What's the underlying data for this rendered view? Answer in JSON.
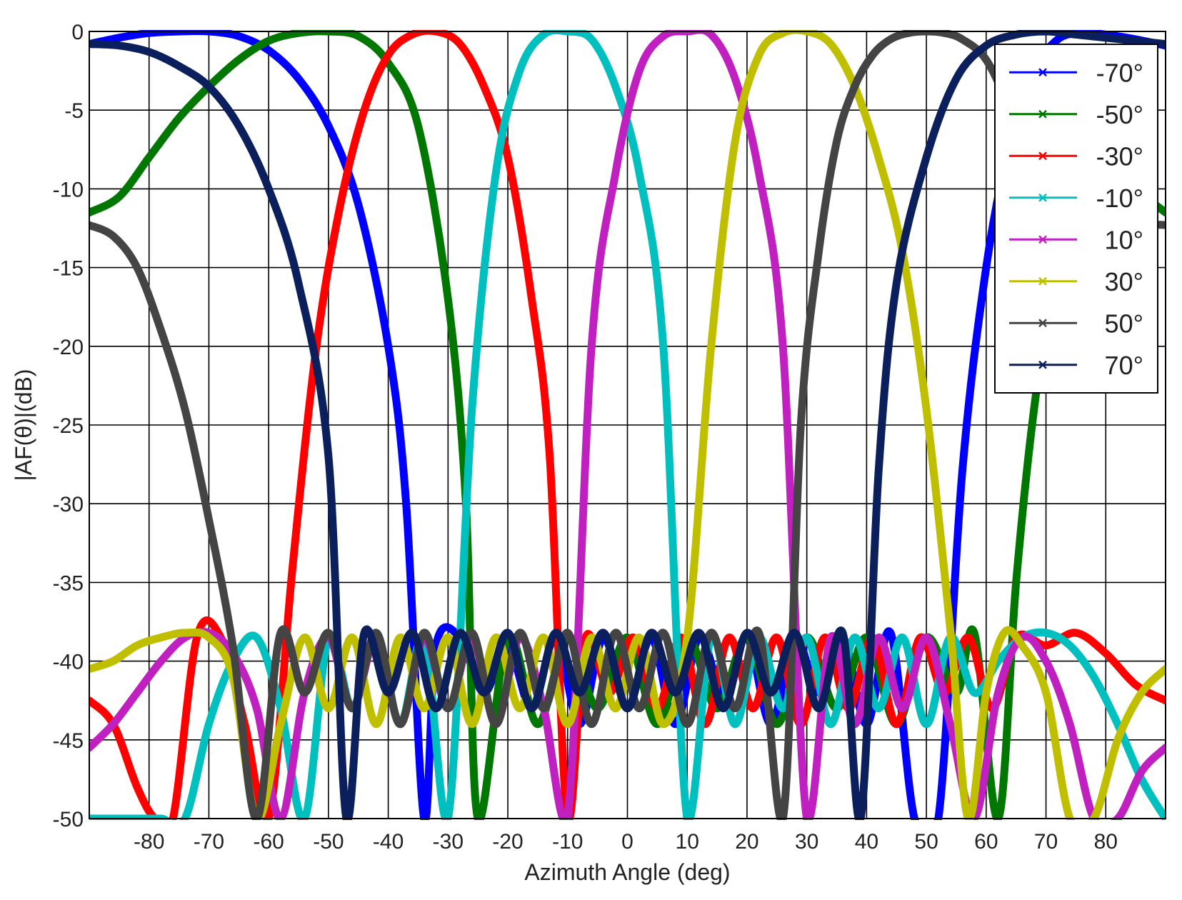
{
  "chart_data": {
    "type": "line",
    "title": "",
    "xlabel": "Azimuth Angle (deg)",
    "ylabel": "|AF(θ)|(dB)",
    "xlim": [
      -90,
      90
    ],
    "ylim": [
      -50,
      0
    ],
    "xticks": [
      -80,
      -70,
      -60,
      -50,
      -40,
      -30,
      -20,
      -10,
      0,
      10,
      20,
      30,
      40,
      50,
      60,
      70,
      80
    ],
    "yticks": [
      0,
      -5,
      -10,
      -15,
      -20,
      -25,
      -30,
      -35,
      -40,
      -45,
      -50
    ],
    "grid": true,
    "legend_position": "top-right",
    "marker": "x",
    "series": [
      {
        "name": "-70°",
        "color": "#0000ff",
        "x": [
          -90,
          -85,
          -80,
          -75,
          -70,
          -65,
          -60,
          -55,
          -50,
          -45,
          -40,
          -37,
          -34,
          -32,
          -28,
          -24,
          -20,
          -16,
          -12,
          -8,
          -4,
          0,
          4,
          8,
          12,
          16,
          20,
          24,
          28,
          32,
          36,
          40,
          44,
          48,
          52,
          56,
          60,
          64,
          68,
          72,
          76,
          80,
          85,
          90
        ],
        "y": [
          -0.8,
          -0.4,
          -0.1,
          0,
          0,
          -0.3,
          -1.2,
          -3,
          -6,
          -11,
          -20,
          -30,
          -50,
          -39,
          -38.5,
          -42,
          -39,
          -43,
          -38.5,
          -44,
          -38.5,
          -43,
          -38.5,
          -44,
          -38.5,
          -42,
          -38.5,
          -44,
          -38.5,
          -42,
          -38.5,
          -44,
          -38.2,
          -50,
          -50,
          -28,
          -15,
          -7,
          -2.5,
          -0.5,
          -0.1,
          -0.2,
          -0.5,
          -0.9
        ]
      },
      {
        "name": "-50°",
        "color": "#007700",
        "x": [
          -90,
          -85,
          -80,
          -75,
          -70,
          -65,
          -60,
          -55,
          -50,
          -45,
          -40,
          -35,
          -30,
          -27,
          -25,
          -20,
          -15,
          -10,
          -5,
          0,
          5,
          10,
          15,
          20,
          25,
          30,
          35,
          40,
          45,
          50,
          55,
          58,
          62,
          65,
          68,
          72,
          76,
          80,
          85,
          90
        ],
        "y": [
          -11.5,
          -10.5,
          -8,
          -5.5,
          -3.5,
          -1.8,
          -0.6,
          -0.1,
          0,
          -0.3,
          -2,
          -6,
          -17,
          -30,
          -50,
          -38.5,
          -44,
          -38.5,
          -43,
          -38.5,
          -44,
          -38.5,
          -43,
          -38.5,
          -44,
          -38.5,
          -43,
          -38.5,
          -44,
          -38.5,
          -42,
          -38.2,
          -50,
          -35,
          -24,
          -14,
          -9,
          -8,
          -10,
          -11.5
        ]
      },
      {
        "name": "-30°",
        "color": "#ff0000",
        "x": [
          -90,
          -86,
          -82,
          -79,
          -76,
          -72,
          -68,
          -64,
          -60,
          -56,
          -52,
          -48,
          -44,
          -40,
          -36,
          -32,
          -28,
          -24,
          -20,
          -16,
          -13,
          -10,
          -7,
          -3,
          1,
          5,
          9,
          13,
          17,
          21,
          25,
          29,
          33,
          37,
          41,
          45,
          49,
          53,
          57,
          61,
          65,
          70,
          75,
          80,
          85,
          90
        ],
        "y": [
          -42.5,
          -44,
          -48,
          -50,
          -50,
          -38.5,
          -38.5,
          -44,
          -50,
          -34,
          -20,
          -11,
          -5,
          -1.5,
          -0.2,
          0,
          -0.8,
          -3.5,
          -8,
          -17,
          -27,
          -50,
          -38.5,
          -42,
          -38.5,
          -43,
          -38.5,
          -44,
          -38.5,
          -43,
          -38.5,
          -44,
          -38.5,
          -43,
          -38.5,
          -44,
          -38.5,
          -42,
          -38.5,
          -43,
          -38.5,
          -39,
          -38.2,
          -39.5,
          -41.5,
          -42.5
        ]
      },
      {
        "name": "-10°",
        "color": "#00bfbf",
        "x": [
          -90,
          -86,
          -82,
          -78,
          -74,
          -70,
          -66,
          -62,
          -58,
          -54,
          -50,
          -46,
          -42,
          -38,
          -34,
          -30,
          -26,
          -22,
          -18,
          -14,
          -10,
          -6,
          -2,
          2,
          6,
          10,
          14,
          18,
          22,
          26,
          30,
          34,
          38,
          42,
          46,
          50,
          54,
          58,
          62,
          66,
          70,
          74,
          78,
          82,
          86,
          90
        ],
        "y": [
          -50,
          -50,
          -50,
          -50,
          -50,
          -44,
          -40,
          -38.5,
          -43,
          -50,
          -38.5,
          -43,
          -38.5,
          -44,
          -38.5,
          -50,
          -24,
          -9,
          -2.5,
          -0.2,
          0,
          -0.5,
          -3.5,
          -9,
          -20,
          -50,
          -38.5,
          -44,
          -38.5,
          -43,
          -38.5,
          -44,
          -38.5,
          -43,
          -38.5,
          -44,
          -38.5,
          -42,
          -40,
          -38.5,
          -38.2,
          -39,
          -41,
          -44,
          -47.5,
          -50
        ]
      },
      {
        "name": "10°",
        "color": "#c020c0",
        "x": [
          -90,
          -86,
          -82,
          -78,
          -74,
          -70,
          -66,
          -62,
          -58,
          -54,
          -50,
          -46,
          -42,
          -38,
          -34,
          -30,
          -26,
          -22,
          -18,
          -14,
          -10,
          -6,
          -2,
          2,
          6,
          10,
          14,
          18,
          22,
          26,
          30,
          34,
          38,
          42,
          46,
          50,
          54,
          58,
          62,
          66,
          70,
          74,
          78,
          82,
          86,
          90
        ],
        "y": [
          -45.5,
          -44,
          -42,
          -40,
          -38.5,
          -38.2,
          -39.5,
          -43,
          -50,
          -42,
          -38.5,
          -43,
          -38.5,
          -44,
          -38.5,
          -43,
          -38.5,
          -44,
          -38.5,
          -43,
          -50,
          -20,
          -9,
          -2.5,
          -0.3,
          0,
          -0.2,
          -3,
          -9,
          -20,
          -50,
          -38.5,
          -44,
          -38.5,
          -43,
          -38.5,
          -44,
          -50,
          -42,
          -38.5,
          -40,
          -44,
          -50,
          -50,
          -47,
          -45.5
        ]
      },
      {
        "name": "30°",
        "color": "#bfbf00",
        "x": [
          -90,
          -86,
          -82,
          -78,
          -74,
          -70,
          -66,
          -62,
          -58,
          -54,
          -50,
          -46,
          -42,
          -38,
          -34,
          -30,
          -26,
          -22,
          -18,
          -14,
          -10,
          -6,
          -2,
          2,
          6,
          10,
          14,
          18,
          22,
          26,
          30,
          34,
          38,
          42,
          46,
          50,
          54,
          57,
          60,
          63,
          66,
          70,
          74,
          78,
          82,
          86,
          90
        ],
        "y": [
          -40.5,
          -40,
          -39,
          -38.5,
          -38.2,
          -38.5,
          -41,
          -50,
          -44,
          -38.5,
          -43,
          -38.5,
          -44,
          -38.5,
          -43,
          -38.5,
          -44,
          -38.5,
          -43,
          -38.5,
          -44,
          -38.5,
          -43,
          -38.5,
          -44,
          -38.5,
          -20,
          -7,
          -1.5,
          -0.1,
          0,
          -0.8,
          -3.5,
          -8,
          -14,
          -24,
          -38,
          -50,
          -42,
          -38.2,
          -39,
          -42,
          -50,
          -50,
          -45,
          -42,
          -40.5
        ]
      },
      {
        "name": "50°",
        "color": "#444444",
        "x": [
          -90,
          -86,
          -82,
          -78,
          -74,
          -70,
          -66,
          -62,
          -58,
          -54,
          -50,
          -46,
          -42,
          -38,
          -34,
          -30,
          -26,
          -22,
          -18,
          -14,
          -10,
          -6,
          -2,
          2,
          6,
          10,
          14,
          18,
          22,
          26,
          29,
          32,
          35,
          38,
          41,
          44,
          47,
          50,
          53,
          56,
          60,
          64,
          68,
          72,
          76,
          80,
          85,
          90
        ],
        "y": [
          -12.3,
          -13,
          -15,
          -19,
          -24,
          -31,
          -39,
          -50,
          -38.2,
          -42,
          -38.2,
          -43,
          -38.2,
          -44,
          -38.2,
          -43,
          -38.2,
          -44,
          -38.2,
          -43,
          -38.2,
          -44,
          -38.2,
          -43,
          -38.2,
          -44,
          -38.2,
          -43,
          -38.2,
          -50,
          -25,
          -14,
          -7,
          -3.5,
          -1.5,
          -0.5,
          -0.1,
          0,
          -0.1,
          -0.5,
          -1.8,
          -5,
          -9,
          -11.5,
          -12,
          -12,
          -12.2,
          -12.3
        ]
      },
      {
        "name": "70°",
        "color": "#0a1f5c",
        "x": [
          -90,
          -85,
          -80,
          -75,
          -70,
          -65,
          -60,
          -55,
          -50,
          -47,
          -44,
          -40,
          -36,
          -32,
          -28,
          -24,
          -20,
          -16,
          -12,
          -8,
          -4,
          0,
          4,
          8,
          12,
          16,
          20,
          24,
          28,
          32,
          36,
          39,
          42,
          45,
          50,
          55,
          60,
          65,
          70,
          75,
          80,
          85,
          90
        ],
        "y": [
          -0.8,
          -0.9,
          -1.3,
          -2.2,
          -3.5,
          -6,
          -10,
          -16,
          -27,
          -50,
          -38.2,
          -42,
          -38.2,
          -43,
          -38.2,
          -42,
          -38.2,
          -43,
          -38.2,
          -42,
          -38.2,
          -43,
          -38.2,
          -42,
          -38.2,
          -43,
          -38.2,
          -42,
          -38.2,
          -43,
          -38.2,
          -50,
          -28,
          -16,
          -8,
          -3,
          -0.9,
          -0.2,
          0,
          -0.2,
          -0.4,
          -0.6,
          -0.8
        ]
      }
    ]
  }
}
